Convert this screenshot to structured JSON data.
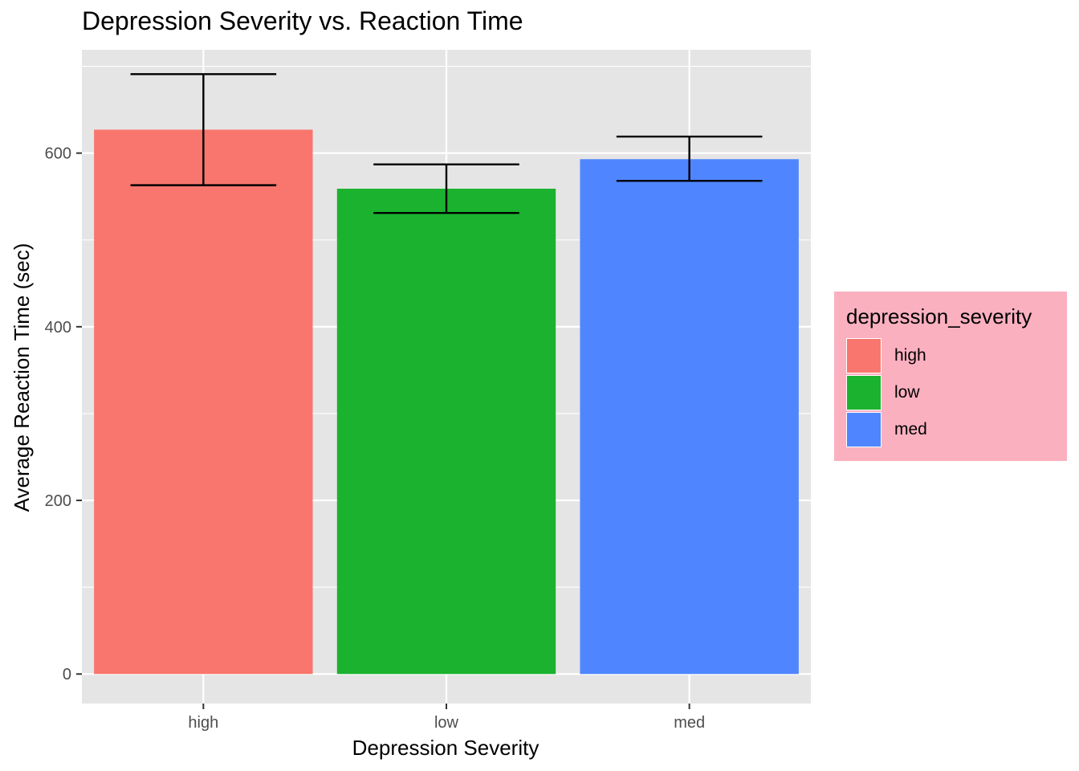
{
  "chart_data": {
    "type": "bar",
    "title": "Depression Severity vs. Reaction Time",
    "xlabel": "Depression Severity",
    "ylabel": "Average Reaction Time (sec)",
    "categories": [
      "high",
      "low",
      "med"
    ],
    "values": [
      627,
      559,
      593
    ],
    "error_low": [
      563,
      531,
      568
    ],
    "error_high": [
      691,
      587,
      619
    ],
    "colors": [
      "#f8766d",
      "#1bb22f",
      "#4f86ff"
    ],
    "ylim": [
      -34,
      719
    ],
    "yticks": [
      0,
      200,
      400,
      600
    ],
    "ytick_labels": [
      "0",
      "200",
      "400",
      "600"
    ],
    "grid": true,
    "legend": {
      "title": "depression_severity",
      "position": "right",
      "entries": [
        "high",
        "low",
        "med"
      ]
    }
  }
}
